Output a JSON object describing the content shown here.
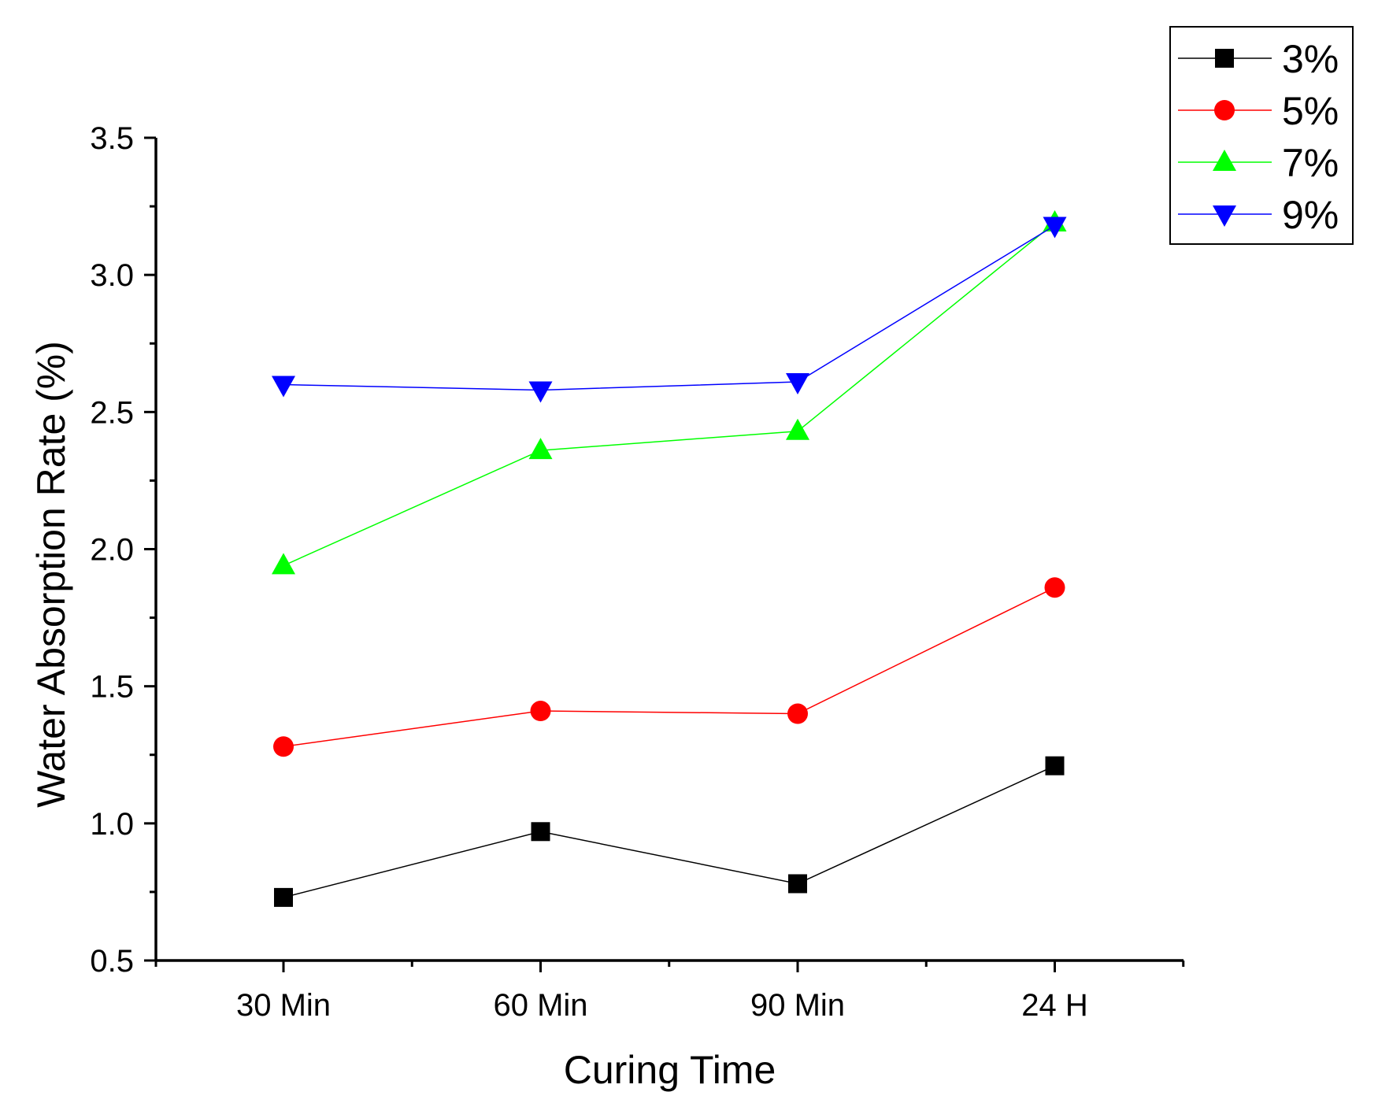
{
  "chart_data": {
    "type": "line",
    "title": "",
    "xlabel": "Curing Time",
    "ylabel": "Water Absorption Rate (%)",
    "categories": [
      "30 Min",
      "60 Min",
      "90 Min",
      "24 H"
    ],
    "ylim": [
      0.5,
      3.5
    ],
    "yticks": [
      "0.5",
      "1.0",
      "1.5",
      "2.0",
      "2.5",
      "3.0",
      "3.5"
    ],
    "grid": false,
    "legend_position": "top-right",
    "series": [
      {
        "name": "3%",
        "values": [
          0.73,
          0.97,
          0.78,
          1.21
        ],
        "color": "#000000",
        "marker": "square"
      },
      {
        "name": "5%",
        "values": [
          1.28,
          1.41,
          1.4,
          1.86
        ],
        "color": "#ff0000",
        "marker": "circle"
      },
      {
        "name": "7%",
        "values": [
          1.94,
          2.36,
          2.43,
          3.19
        ],
        "color": "#00ff00",
        "marker": "triangle-up"
      },
      {
        "name": "9%",
        "values": [
          2.6,
          2.58,
          2.61,
          3.18
        ],
        "color": "#0000ff",
        "marker": "triangle-down"
      }
    ]
  }
}
